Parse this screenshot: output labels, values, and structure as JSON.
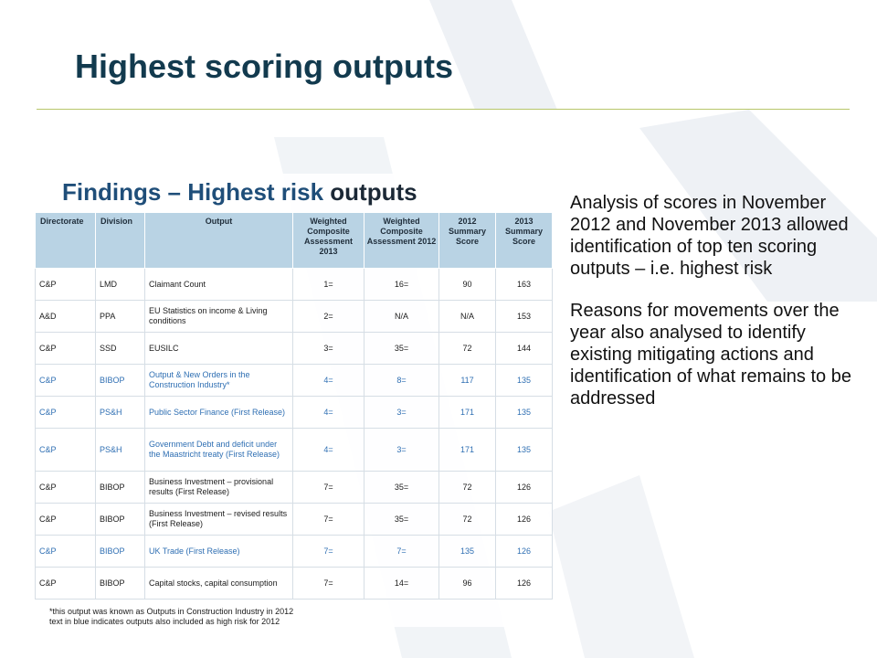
{
  "slide": {
    "title": "Highest scoring outputs"
  },
  "findings": {
    "heading_part1": "Findings – Highest risk ",
    "heading_part2": "outputs",
    "columns": [
      "Directorate",
      "Division",
      "Output",
      "Weighted Composite Assessment 2013",
      "Weighted Composite Assessment 2012",
      "2012 Summary Score",
      "2013 Summary Score"
    ],
    "rows": [
      {
        "directorate": "C&P",
        "division": "LMD",
        "output": "Claimant Count",
        "wca2013": "1=",
        "wca2012": "16=",
        "score2012": "90",
        "score2013": "163",
        "blue": false
      },
      {
        "directorate": "A&D",
        "division": "PPA",
        "output": "EU Statistics on income & Living conditions",
        "wca2013": "2=",
        "wca2012": "N/A",
        "score2012": "N/A",
        "score2013": "153",
        "blue": false
      },
      {
        "directorate": "C&P",
        "division": "SSD",
        "output": "EUSILC",
        "wca2013": "3=",
        "wca2012": "35=",
        "score2012": "72",
        "score2013": "144",
        "blue": false
      },
      {
        "directorate": "C&P",
        "division": "BIBOP",
        "output": "Output & New Orders in the Construction Industry*",
        "wca2013": "4=",
        "wca2012": "8=",
        "score2012": "117",
        "score2013": "135",
        "blue": true
      },
      {
        "directorate": "C&P",
        "division": "PS&H",
        "output": "Public Sector Finance (First Release)",
        "wca2013": "4=",
        "wca2012": "3=",
        "score2012": "171",
        "score2013": "135",
        "blue": true
      },
      {
        "directorate": "C&P",
        "division": "PS&H",
        "output": "Government Debt and deficit under the Maastricht treaty (First Release)",
        "wca2013": "4=",
        "wca2012": "3=",
        "score2012": "171",
        "score2013": "135",
        "blue": true
      },
      {
        "directorate": "C&P",
        "division": "BIBOP",
        "output": "Business Investment – provisional results (First Release)",
        "wca2013": "7=",
        "wca2012": "35=",
        "score2012": "72",
        "score2013": "126",
        "blue": false
      },
      {
        "directorate": "C&P",
        "division": "BIBOP",
        "output": "Business Investment – revised results (First Release)",
        "wca2013": "7=",
        "wca2012": "35=",
        "score2012": "72",
        "score2013": "126",
        "blue": false
      },
      {
        "directorate": "C&P",
        "division": "BIBOP",
        "output": "UK Trade (First Release)",
        "wca2013": "7=",
        "wca2012": "7=",
        "score2012": "135",
        "score2013": "126",
        "blue": true
      },
      {
        "directorate": "C&P",
        "division": "BIBOP",
        "output": "Capital stocks, capital consumption",
        "wca2013": "7=",
        "wca2012": "14=",
        "score2012": "96",
        "score2013": "126",
        "blue": false
      }
    ],
    "notes": [
      "*this output was known as Outputs in Construction Industry in 2012",
      "text in blue indicates outputs also included as high risk for 2012"
    ]
  },
  "analysis": {
    "paragraph1": "Analysis of scores in November 2012 and November 2013 allowed identification of top ten scoring outputs – i.e. highest risk",
    "paragraph2": "Reasons for movements over the year also analysed to identify existing mitigating actions and identification of what remains to be addressed"
  },
  "colors": {
    "title": "#123a4e",
    "rule": "#b7c66a",
    "header_fill": "#b9d3e4",
    "blue_text": "#2f6fb3"
  }
}
